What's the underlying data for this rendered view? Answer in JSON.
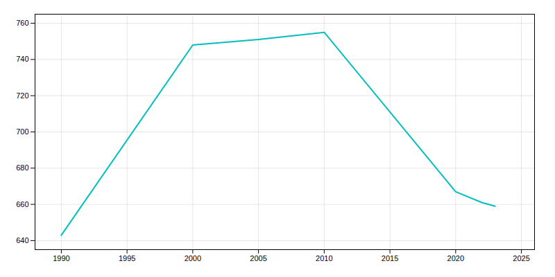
{
  "chart_data": {
    "type": "line",
    "x": [
      1990,
      2000,
      2005,
      2010,
      2020,
      2022,
      2023
    ],
    "values": [
      643,
      748,
      751,
      755,
      667,
      661,
      659
    ],
    "color": "#00BEBE",
    "xlim": [
      1988,
      2026
    ],
    "ylim": [
      635,
      765
    ],
    "xticks": [
      1990,
      1995,
      2000,
      2005,
      2010,
      2015,
      2020,
      2025
    ],
    "yticks": [
      640,
      660,
      680,
      700,
      720,
      740,
      760
    ],
    "grid": true
  }
}
